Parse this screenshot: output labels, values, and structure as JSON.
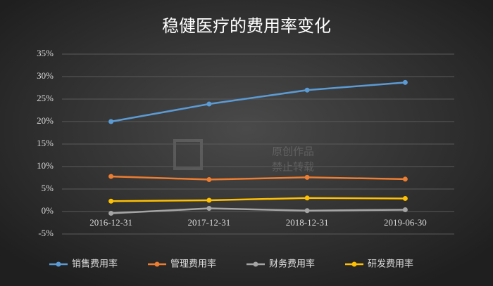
{
  "chart_data": {
    "type": "line",
    "title": "稳健医疗的费用率变化",
    "categories": [
      "2016-12-31",
      "2017-12-31",
      "2018-12-31",
      "2019-06-30"
    ],
    "series": [
      {
        "name": "销售费用率",
        "color": "#5b9bd5",
        "values": [
          20,
          23.9,
          27,
          28.7
        ]
      },
      {
        "name": "管理费用率",
        "color": "#ed7d31",
        "values": [
          7.8,
          7.1,
          7.6,
          7.2
        ]
      },
      {
        "name": "财务费用率",
        "color": "#a5a5a5",
        "values": [
          -0.4,
          0.7,
          0.2,
          0.4
        ]
      },
      {
        "name": "研发费用率",
        "color": "#ffc000",
        "values": [
          2.3,
          2.5,
          3.0,
          2.9
        ]
      }
    ],
    "ylim": [
      -5,
      35
    ],
    "yticks": [
      {
        "value": -5,
        "label": "-5%"
      },
      {
        "value": 0,
        "label": "0%"
      },
      {
        "value": 5,
        "label": "5%"
      },
      {
        "value": 10,
        "label": "10%"
      },
      {
        "value": 15,
        "label": "15%"
      },
      {
        "value": 20,
        "label": "20%"
      },
      {
        "value": 25,
        "label": "25%"
      },
      {
        "value": 30,
        "label": "30%"
      },
      {
        "value": 35,
        "label": "35%"
      }
    ],
    "grid": true,
    "legend": "bottom",
    "watermark": [
      "原创作品",
      "禁止转载"
    ]
  }
}
